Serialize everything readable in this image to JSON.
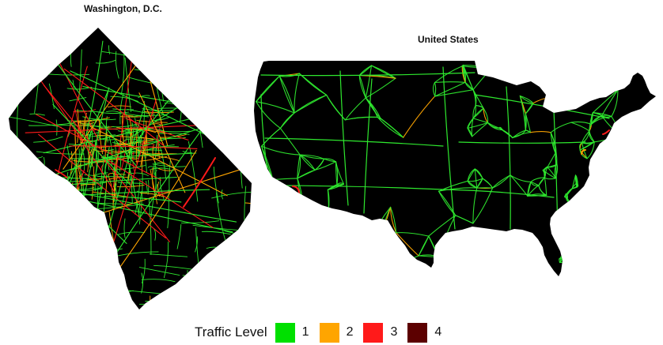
{
  "panels": {
    "dc": {
      "title": "Washington, D.C."
    },
    "us": {
      "title": "United States"
    }
  },
  "legend": {
    "title": "Traffic Level",
    "items": [
      {
        "label": "1",
        "color": "#00e000"
      },
      {
        "label": "2",
        "color": "#ffa500"
      },
      {
        "label": "3",
        "color": "#ff1a1a"
      },
      {
        "label": "4",
        "color": "#5c0000"
      }
    ]
  },
  "colors": {
    "land": "#000000",
    "road": "#2ee82e",
    "background": "#ffffff"
  }
}
